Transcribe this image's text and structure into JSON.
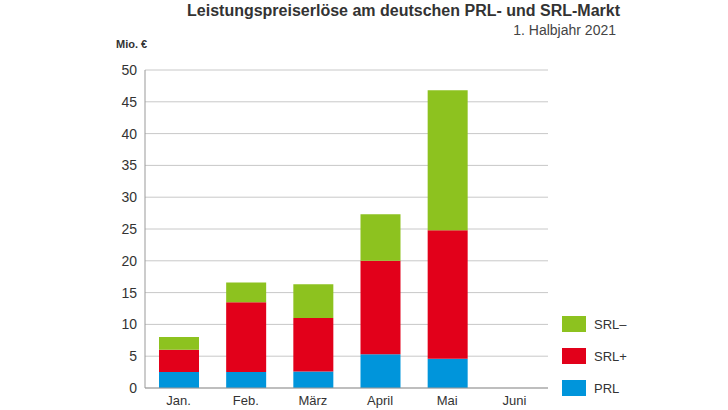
{
  "chart_data": {
    "type": "bar",
    "title": "Leistungspreiserlöse am deutschen PRL- und SRL-Markt",
    "subtitle": "1. Halbjahr 2021",
    "y_label": "Mio. €",
    "categories": [
      "Jan.",
      "Feb.",
      "März",
      "April",
      "Mai",
      "Juni"
    ],
    "series": [
      {
        "name": "PRL",
        "color": "#0095db",
        "values": [
          2.5,
          2.5,
          2.6,
          5.3,
          4.6,
          null
        ]
      },
      {
        "name": "SRL+",
        "color": "#e2001a",
        "values": [
          3.5,
          11,
          8.4,
          14.7,
          20.2,
          null
        ]
      },
      {
        "name": "SRL–",
        "color": "#8dc21f",
        "values": [
          2,
          3.1,
          5.3,
          7.3,
          22,
          null
        ]
      }
    ],
    "ylim": [
      0,
      50
    ],
    "yticks": [
      0,
      5,
      10,
      15,
      20,
      25,
      30,
      35,
      40,
      45,
      50
    ],
    "grid": true,
    "stacked": true,
    "legend": "right"
  }
}
